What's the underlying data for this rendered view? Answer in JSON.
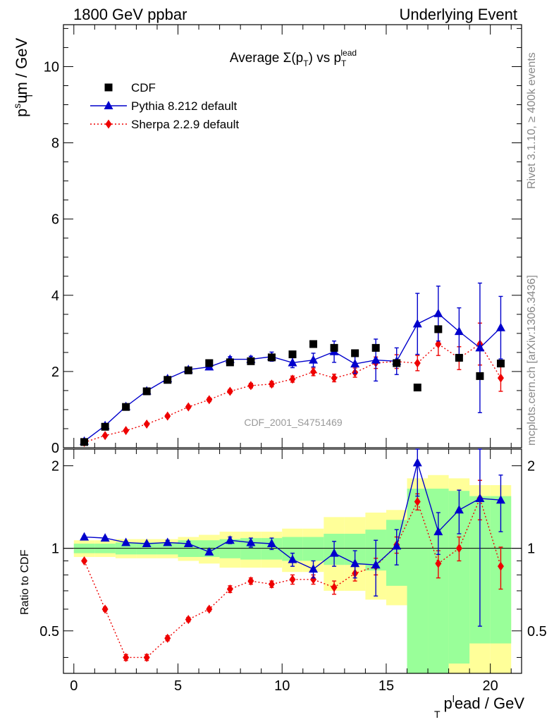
{
  "header": {
    "left": "1800 GeV ppbar",
    "right": "Underlying Event"
  },
  "side_labels": {
    "rivet": "Rivet 3.1.10, ≥ 400k events",
    "mcplots": "mcplots.cern.ch [arXiv:1306.3436]"
  },
  "colors": {
    "cdf": "#000000",
    "pythia": "#0000cc",
    "sherpa": "#ee0000",
    "band_inner": "#99ff99",
    "band_outer": "#ffff99"
  },
  "chart_data": [
    {
      "type": "scatter",
      "title_main": "Average ",
      "title_sigma": "Σ(p",
      "title_sigma_sub": "T",
      "title_mid": ") vs p",
      "title_sub": "T",
      "title_sup": "lead",
      "ylabel_main": "p",
      "ylabel_sup": "s",
      "ylabel_sub": "T",
      "ylabel_rest": "um / GeV",
      "watermark": "CDF_2001_S4751469",
      "xlim": [
        -0.5,
        21.5
      ],
      "ylim": [
        0,
        11.1
      ],
      "yticks": [
        {
          "v": 0,
          "label": "0"
        },
        {
          "v": 2,
          "label": "2"
        },
        {
          "v": 4,
          "label": "4"
        },
        {
          "v": 6,
          "label": "6"
        },
        {
          "v": 8,
          "label": "8"
        },
        {
          "v": 10,
          "label": "10"
        }
      ],
      "legend": [
        {
          "key": "cdf",
          "label": "CDF"
        },
        {
          "key": "pythia",
          "label": "Pythia 8.212 default"
        },
        {
          "key": "sherpa",
          "label": "Sherpa 2.2.9 default"
        }
      ],
      "x": [
        0.5,
        1.5,
        2.5,
        3.5,
        4.5,
        5.5,
        6.5,
        7.5,
        8.5,
        9.5,
        10.5,
        11.5,
        12.5,
        13.5,
        14.5,
        15.5,
        16.5,
        17.5,
        18.5,
        19.5,
        20.5
      ],
      "series": [
        {
          "name": "CDF",
          "key": "cdf",
          "values": [
            0.15,
            0.55,
            1.07,
            1.48,
            1.78,
            2.03,
            2.22,
            2.24,
            2.27,
            2.37,
            2.45,
            2.72,
            2.62,
            2.48,
            2.62,
            2.22,
            1.58,
            3.11,
            2.36,
            1.88,
            2.21
          ],
          "errors": [
            0.02,
            0.03,
            0.04,
            0.05,
            0.05,
            0.05,
            0.06,
            0.07,
            0.08,
            0.09,
            0.1,
            0.1,
            0.12,
            0.12,
            0.15,
            0.15,
            0.2,
            0.25,
            0.3,
            0.35,
            0.4
          ]
        },
        {
          "name": "Pythia 8.212 default",
          "key": "pythia",
          "values": [
            0.17,
            0.58,
            1.08,
            1.49,
            1.81,
            2.05,
            2.12,
            2.32,
            2.32,
            2.39,
            2.23,
            2.3,
            2.52,
            2.2,
            2.3,
            2.27,
            3.25,
            3.52,
            3.05,
            2.62,
            3.15
          ],
          "errors": [
            0.01,
            0.02,
            0.03,
            0.04,
            0.05,
            0.05,
            0.05,
            0.07,
            0.08,
            0.12,
            0.13,
            0.18,
            0.28,
            0.25,
            0.55,
            0.35,
            0.8,
            0.72,
            0.62,
            1.7,
            0.82
          ]
        },
        {
          "name": "Sherpa 2.2.9 default",
          "key": "sherpa",
          "values": [
            0.14,
            0.32,
            0.45,
            0.62,
            0.83,
            1.07,
            1.26,
            1.48,
            1.63,
            1.67,
            1.8,
            1.99,
            1.83,
            1.97,
            2.23,
            2.26,
            2.22,
            2.72,
            2.35,
            2.72,
            1.83
          ],
          "errors": [
            0.01,
            0.02,
            0.02,
            0.03,
            0.04,
            0.04,
            0.05,
            0.05,
            0.06,
            0.07,
            0.08,
            0.1,
            0.1,
            0.12,
            0.15,
            0.18,
            0.2,
            0.3,
            0.3,
            0.55,
            0.35
          ]
        }
      ]
    },
    {
      "type": "scatter",
      "ylabel": "Ratio to CDF",
      "xlabel_main": "p",
      "xlabel_sup": "l",
      "xlabel_sub": "T",
      "xlabel_rest": "ead / GeV",
      "xlim": [
        -0.5,
        21.5
      ],
      "ylim": [
        0.35,
        2.3
      ],
      "xticks": [
        {
          "v": 0,
          "label": "0"
        },
        {
          "v": 5,
          "label": "5"
        },
        {
          "v": 10,
          "label": "10"
        },
        {
          "v": 15,
          "label": "15"
        },
        {
          "v": 20,
          "label": "20"
        }
      ],
      "yticks": [
        {
          "v": 0.5,
          "label": "0.5"
        },
        {
          "v": 1,
          "label": "1"
        },
        {
          "v": 2,
          "label": "2"
        }
      ],
      "x": [
        0.5,
        1.5,
        2.5,
        3.5,
        4.5,
        5.5,
        6.5,
        7.5,
        8.5,
        9.5,
        10.5,
        11.5,
        12.5,
        13.5,
        14.5,
        15.5,
        16.5,
        17.5,
        18.5,
        19.5,
        20.5
      ],
      "bands": {
        "inner": [
          0.04,
          0.04,
          0.05,
          0.05,
          0.05,
          0.07,
          0.07,
          0.08,
          0.09,
          0.09,
          0.1,
          0.1,
          0.13,
          0.13,
          0.17,
          0.27,
          0.65,
          0.65,
          0.62,
          0.55,
          0.55
        ],
        "outer": [
          0.07,
          0.07,
          0.08,
          0.08,
          0.08,
          0.1,
          0.12,
          0.15,
          0.15,
          0.15,
          0.18,
          0.18,
          0.3,
          0.3,
          0.35,
          0.38,
          0.8,
          0.85,
          0.8,
          0.7,
          0.7
        ]
      },
      "series": [
        {
          "name": "Pythia 8.212 default",
          "key": "pythia",
          "values": [
            1.1,
            1.09,
            1.05,
            1.04,
            1.05,
            1.04,
            0.97,
            1.07,
            1.05,
            1.04,
            0.91,
            0.84,
            0.96,
            0.88,
            0.87,
            1.02,
            2.05,
            1.15,
            1.38,
            1.52,
            1.5
          ],
          "errors": [
            0.01,
            0.01,
            0.01,
            0.01,
            0.02,
            0.02,
            0.02,
            0.03,
            0.04,
            0.05,
            0.05,
            0.06,
            0.1,
            0.1,
            0.2,
            0.15,
            0.5,
            0.2,
            0.25,
            1.0,
            0.35
          ]
        },
        {
          "name": "Sherpa 2.2.9 default",
          "key": "sherpa",
          "values": [
            0.9,
            0.6,
            0.4,
            0.4,
            0.47,
            0.55,
            0.6,
            0.71,
            0.76,
            0.74,
            0.77,
            0.77,
            0.72,
            0.81,
            0.86,
            1.03,
            1.48,
            0.88,
            1.0,
            1.52,
            0.86
          ],
          "errors": [
            0.01,
            0.01,
            0.01,
            0.01,
            0.01,
            0.01,
            0.01,
            0.02,
            0.02,
            0.02,
            0.03,
            0.03,
            0.04,
            0.05,
            0.06,
            0.07,
            0.1,
            0.1,
            0.1,
            0.25,
            0.15
          ]
        }
      ]
    }
  ]
}
